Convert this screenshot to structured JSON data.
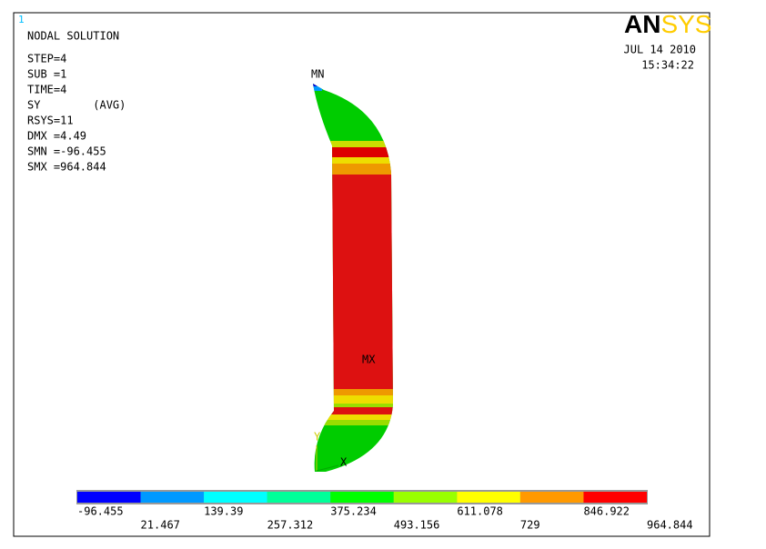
{
  "window_number": "1",
  "info": [
    "NODAL SOLUTION",
    "STEP=4",
    "SUB =1",
    "TIME=4",
    "SY        (AVG)",
    "RSYS=11",
    "DMX =4.49",
    "SMN =-96.455",
    "SMX =964.844"
  ],
  "logo": {
    "part1": "AN",
    "part2": "SYS"
  },
  "date": "JUL 14 2010",
  "time": "15:34:22",
  "markers": {
    "min": "MN",
    "max": "MX",
    "axis_y": "Y",
    "axis_x": "X"
  },
  "legend": {
    "colors": [
      "#0000ff",
      "#0099ff",
      "#00ffff",
      "#00ff99",
      "#00ff00",
      "#99ff00",
      "#ffff00",
      "#ff9900",
      "#ff0000"
    ],
    "labels": [
      "-96.455",
      "21.467",
      "139.39",
      "257.312",
      "375.234",
      "493.156",
      "611.078",
      "729",
      "846.922",
      "964.844"
    ]
  }
}
